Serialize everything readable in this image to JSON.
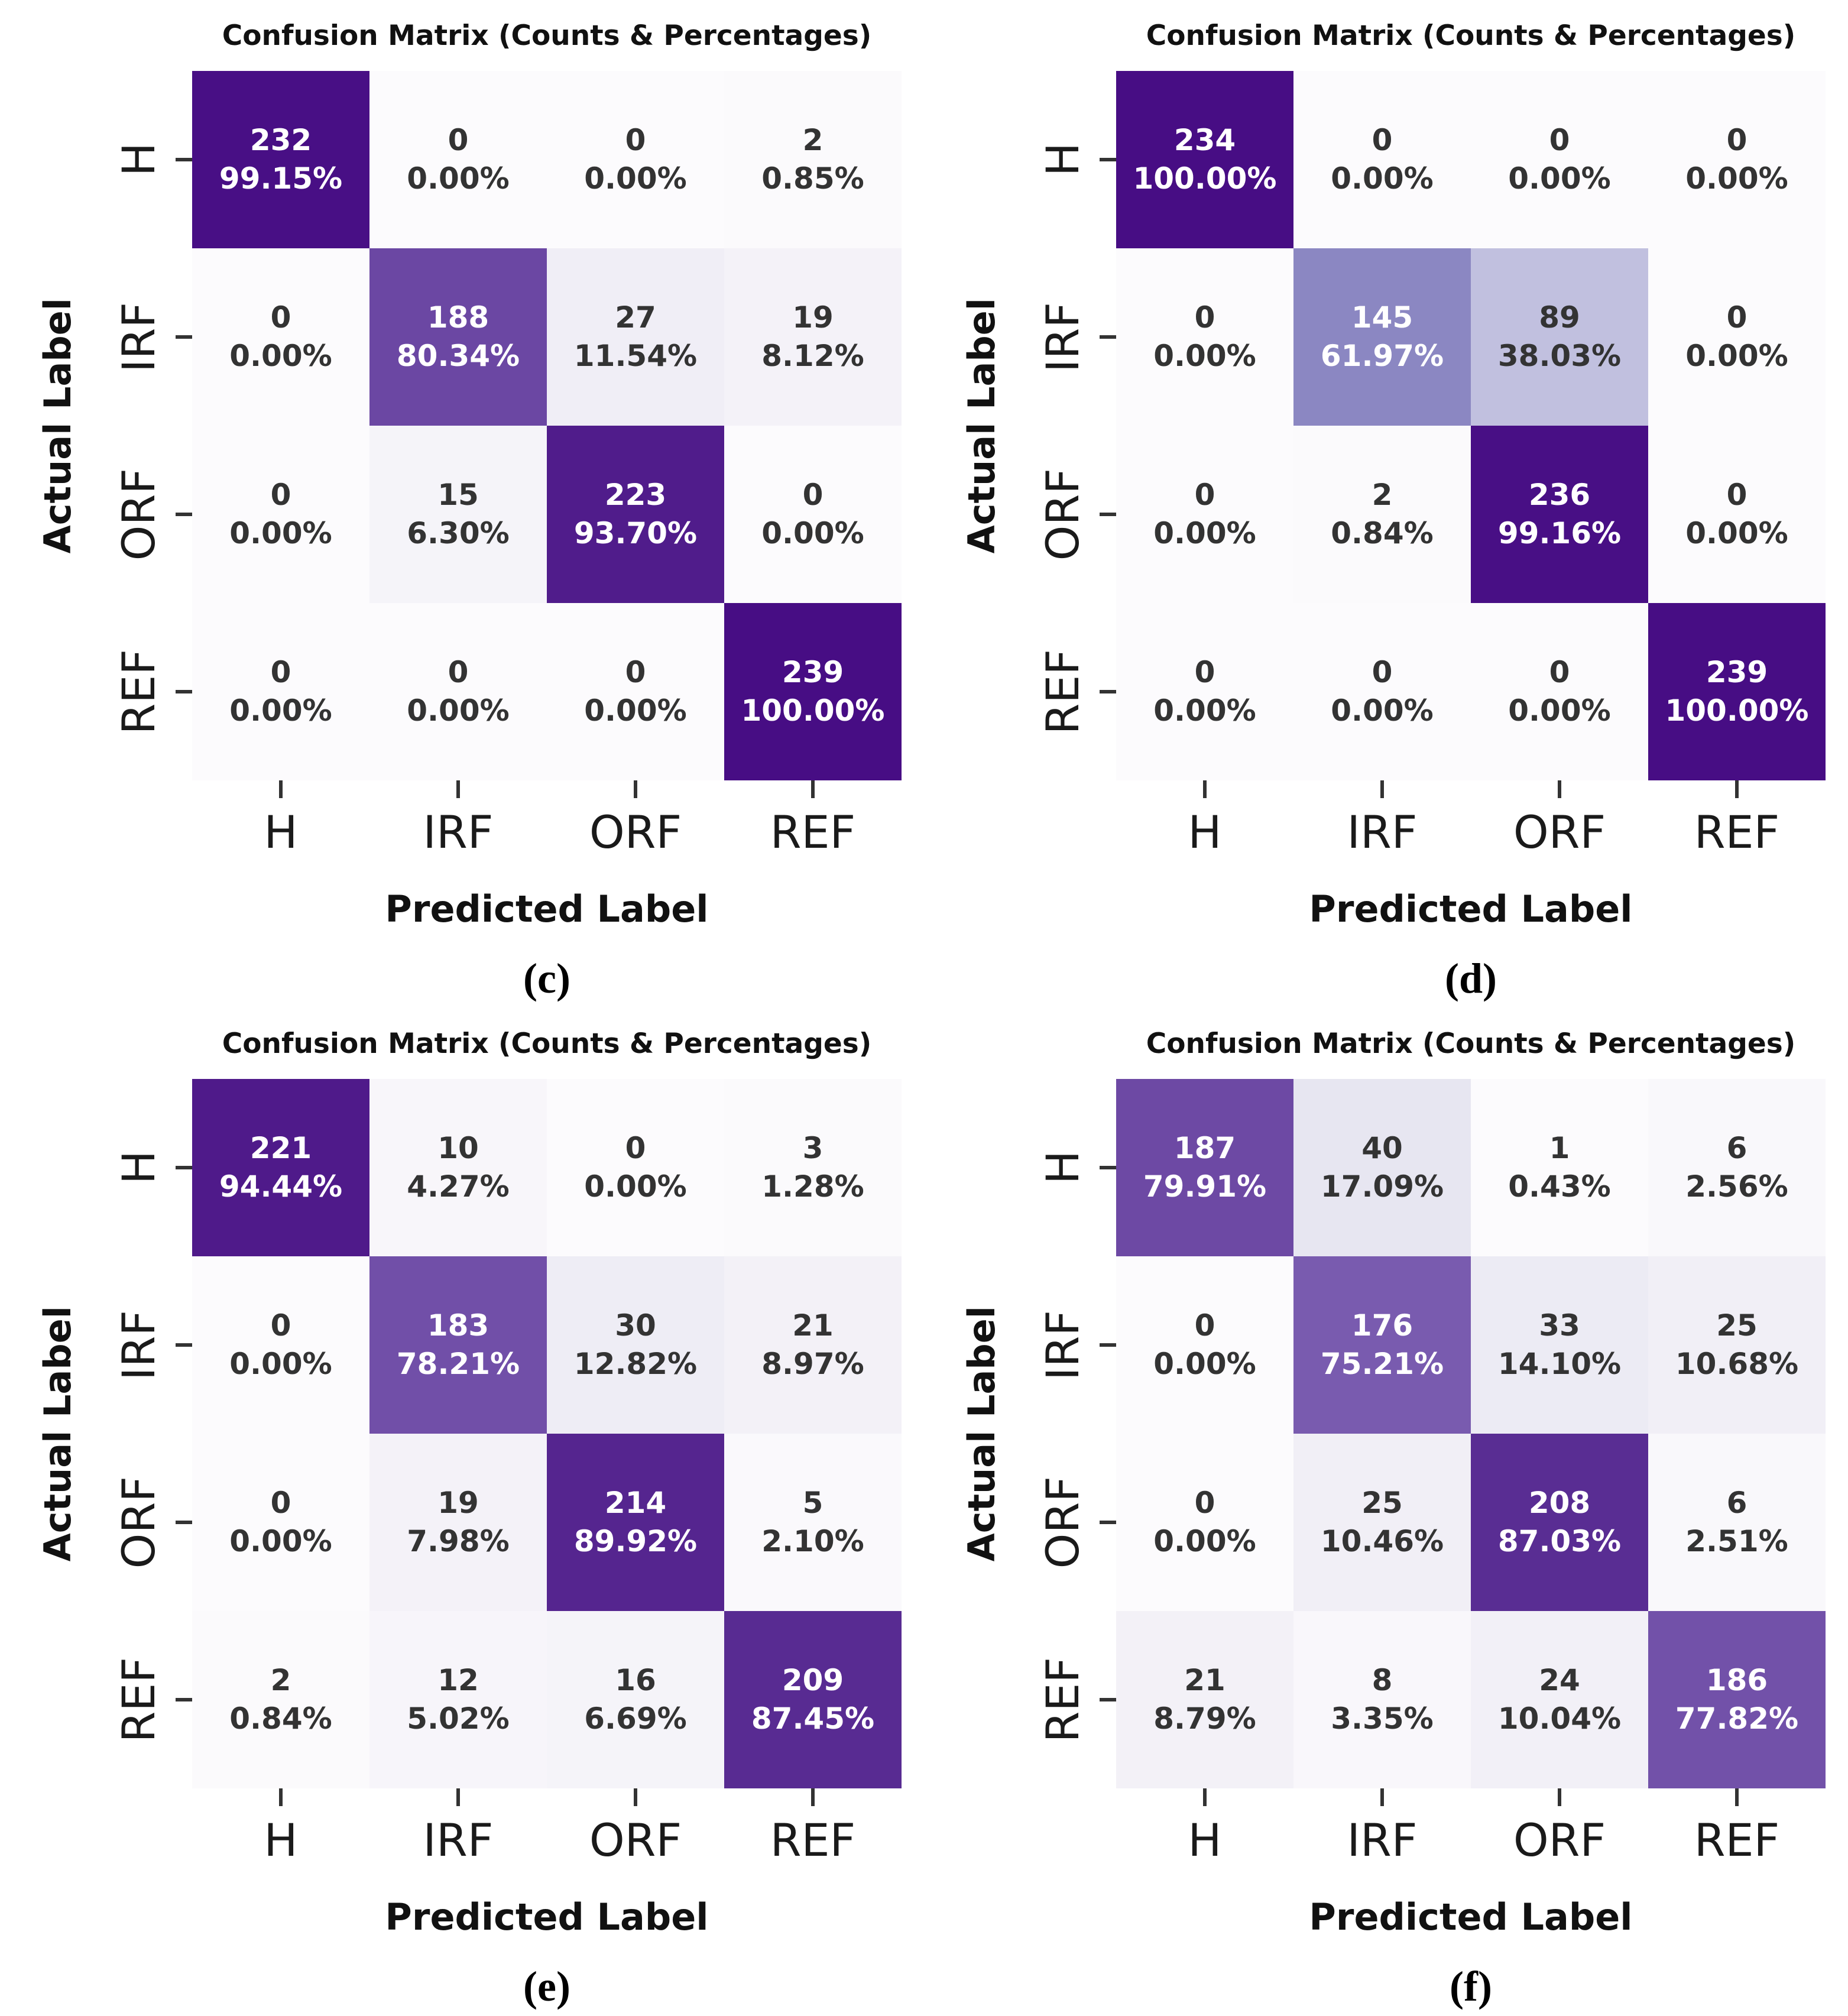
{
  "colormap": {
    "name": "purples-heatmap",
    "stops": [
      [
        0.0,
        "#fcfbfd"
      ],
      [
        0.125,
        "#efedf5"
      ],
      [
        0.25,
        "#dadaeb"
      ],
      [
        0.375,
        "#c3c2e0"
      ],
      [
        0.5,
        "#9e9ac8"
      ],
      [
        0.625,
        "#8a86c2"
      ],
      [
        0.75,
        "#7a5cb0"
      ],
      [
        0.875,
        "#582b92"
      ],
      [
        1.0,
        "#470d84"
      ]
    ],
    "white_text_threshold": 50,
    "cell_text_light": "#ffffff",
    "cell_text_dark": "#333333",
    "tick_color": "#333333"
  },
  "chart_data": [
    {
      "type": "heatmap",
      "caption": "(c)",
      "title": "Confusion Matrix (Counts & Percentages)",
      "xlabel": "Predicted Label",
      "ylabel": "Actual Label",
      "x_labels": [
        "H",
        "IRF",
        "ORF",
        "REF"
      ],
      "y_labels": [
        "H",
        "IRF",
        "ORF",
        "REF"
      ],
      "cells": [
        [
          {
            "count": 232,
            "pct": 99.15
          },
          {
            "count": 0,
            "pct": 0.0
          },
          {
            "count": 0,
            "pct": 0.0
          },
          {
            "count": 2,
            "pct": 0.85
          }
        ],
        [
          {
            "count": 0,
            "pct": 0.0
          },
          {
            "count": 188,
            "pct": 80.34
          },
          {
            "count": 27,
            "pct": 11.54
          },
          {
            "count": 19,
            "pct": 8.12
          }
        ],
        [
          {
            "count": 0,
            "pct": 0.0
          },
          {
            "count": 15,
            "pct": 6.3
          },
          {
            "count": 223,
            "pct": 93.7
          },
          {
            "count": 0,
            "pct": 0.0
          }
        ],
        [
          {
            "count": 0,
            "pct": 0.0
          },
          {
            "count": 0,
            "pct": 0.0
          },
          {
            "count": 0,
            "pct": 0.0
          },
          {
            "count": 239,
            "pct": 100.0
          }
        ]
      ]
    },
    {
      "type": "heatmap",
      "caption": "(d)",
      "title": "Confusion Matrix (Counts & Percentages)",
      "xlabel": "Predicted Label",
      "ylabel": "Actual Label",
      "x_labels": [
        "H",
        "IRF",
        "ORF",
        "REF"
      ],
      "y_labels": [
        "H",
        "IRF",
        "ORF",
        "REF"
      ],
      "cells": [
        [
          {
            "count": 234,
            "pct": 100.0
          },
          {
            "count": 0,
            "pct": 0.0
          },
          {
            "count": 0,
            "pct": 0.0
          },
          {
            "count": 0,
            "pct": 0.0
          }
        ],
        [
          {
            "count": 0,
            "pct": 0.0
          },
          {
            "count": 145,
            "pct": 61.97
          },
          {
            "count": 89,
            "pct": 38.03
          },
          {
            "count": 0,
            "pct": 0.0
          }
        ],
        [
          {
            "count": 0,
            "pct": 0.0
          },
          {
            "count": 2,
            "pct": 0.84
          },
          {
            "count": 236,
            "pct": 99.16
          },
          {
            "count": 0,
            "pct": 0.0
          }
        ],
        [
          {
            "count": 0,
            "pct": 0.0
          },
          {
            "count": 0,
            "pct": 0.0
          },
          {
            "count": 0,
            "pct": 0.0
          },
          {
            "count": 239,
            "pct": 100.0
          }
        ]
      ]
    },
    {
      "type": "heatmap",
      "caption": "(e)",
      "title": "Confusion Matrix (Counts & Percentages)",
      "xlabel": "Predicted Label",
      "ylabel": "Actual Label",
      "x_labels": [
        "H",
        "IRF",
        "ORF",
        "REF"
      ],
      "y_labels": [
        "H",
        "IRF",
        "ORF",
        "REF"
      ],
      "cells": [
        [
          {
            "count": 221,
            "pct": 94.44
          },
          {
            "count": 10,
            "pct": 4.27
          },
          {
            "count": 0,
            "pct": 0.0
          },
          {
            "count": 3,
            "pct": 1.28
          }
        ],
        [
          {
            "count": 0,
            "pct": 0.0
          },
          {
            "count": 183,
            "pct": 78.21
          },
          {
            "count": 30,
            "pct": 12.82
          },
          {
            "count": 21,
            "pct": 8.97
          }
        ],
        [
          {
            "count": 0,
            "pct": 0.0
          },
          {
            "count": 19,
            "pct": 7.98
          },
          {
            "count": 214,
            "pct": 89.92
          },
          {
            "count": 5,
            "pct": 2.1
          }
        ],
        [
          {
            "count": 2,
            "pct": 0.84
          },
          {
            "count": 12,
            "pct": 5.02
          },
          {
            "count": 16,
            "pct": 6.69
          },
          {
            "count": 209,
            "pct": 87.45
          }
        ]
      ]
    },
    {
      "type": "heatmap",
      "caption": "(f)",
      "title": "Confusion Matrix (Counts & Percentages)",
      "xlabel": "Predicted Label",
      "ylabel": "Actual Label",
      "x_labels": [
        "H",
        "IRF",
        "ORF",
        "REF"
      ],
      "y_labels": [
        "H",
        "IRF",
        "ORF",
        "REF"
      ],
      "cells": [
        [
          {
            "count": 187,
            "pct": 79.91
          },
          {
            "count": 40,
            "pct": 17.09
          },
          {
            "count": 1,
            "pct": 0.43
          },
          {
            "count": 6,
            "pct": 2.56
          }
        ],
        [
          {
            "count": 0,
            "pct": 0.0
          },
          {
            "count": 176,
            "pct": 75.21
          },
          {
            "count": 33,
            "pct": 14.1
          },
          {
            "count": 25,
            "pct": 10.68
          }
        ],
        [
          {
            "count": 0,
            "pct": 0.0
          },
          {
            "count": 25,
            "pct": 10.46
          },
          {
            "count": 208,
            "pct": 87.03
          },
          {
            "count": 6,
            "pct": 2.51
          }
        ],
        [
          {
            "count": 21,
            "pct": 8.79
          },
          {
            "count": 8,
            "pct": 3.35
          },
          {
            "count": 24,
            "pct": 10.04
          },
          {
            "count": 186,
            "pct": 77.82
          }
        ]
      ]
    }
  ]
}
